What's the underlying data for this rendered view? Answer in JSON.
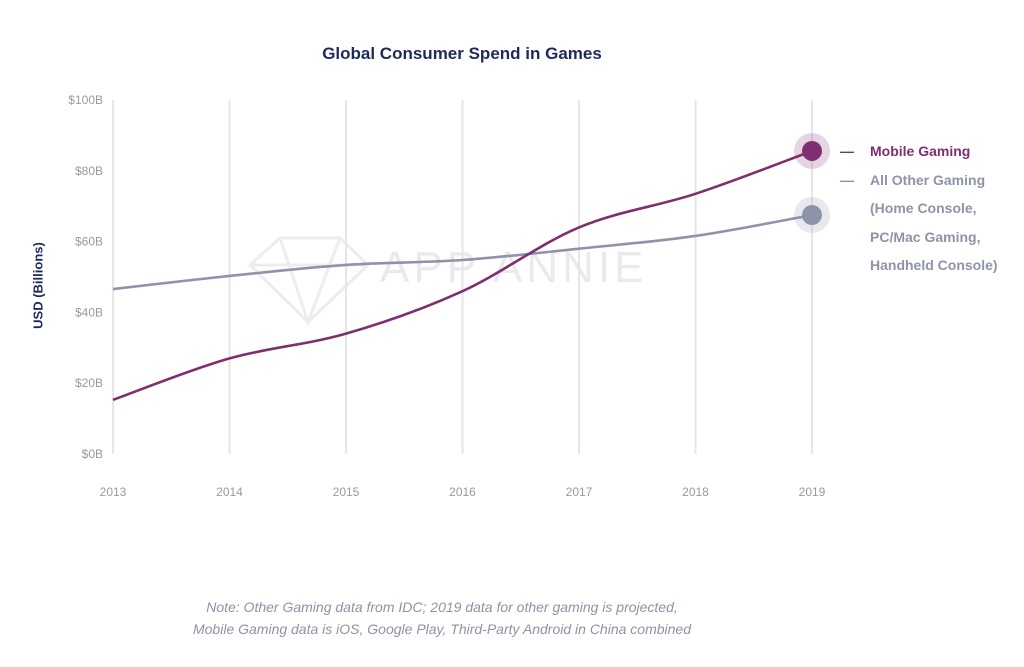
{
  "watermark": "APP ANNIE",
  "note": {
    "line1": "Note: Other Gaming data from IDC; 2019 data for other gaming is projected,",
    "line2": "Mobile Gaming data is iOS, Google Play, Third-Party Android in China combined"
  },
  "chart_data": {
    "type": "line",
    "title": "Global Consumer Spend in Games",
    "xlabel": "",
    "ylabel": "USD (Billions)",
    "x": [
      "2013",
      "2014",
      "2015",
      "2016",
      "2017",
      "2018",
      "2019"
    ],
    "ylim": [
      0,
      100
    ],
    "yticks": [
      "$0B",
      "$20B",
      "$40B",
      "$60B",
      "$80B",
      "$100B"
    ],
    "ytick_values": [
      0,
      20,
      40,
      60,
      80,
      100
    ],
    "grid": "vertical",
    "legend_position": "right",
    "series": [
      {
        "name": "Mobile Gaming",
        "color": "#7f2f6f",
        "values": [
          15.3,
          27,
          34,
          46,
          64,
          73.5,
          85.6
        ]
      },
      {
        "name": "All Other Gaming",
        "name_lines": [
          "All Other Gaming",
          "(Home Console,",
          "PC/Mac Gaming,",
          "Handheld Console)"
        ],
        "color": "#8e93a8",
        "values": [
          46.6,
          50.3,
          53.4,
          54.8,
          58,
          61.6,
          67.5
        ]
      }
    ]
  }
}
